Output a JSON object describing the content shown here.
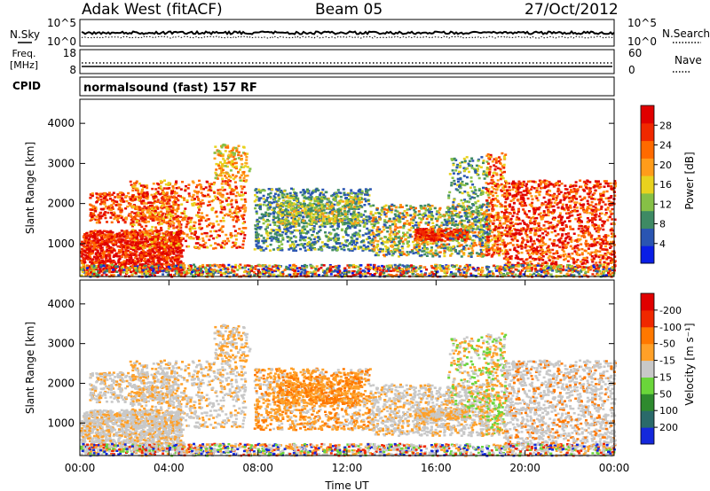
{
  "header": {
    "station": "Adak West (fitACF)",
    "beam": "Beam 05",
    "date": "27/Oct/2012"
  },
  "chart_data": [
    {
      "type": "line",
      "name": "noise-panel",
      "left_label": "N.Sky",
      "left_ticks": [
        "10^5",
        "10^0"
      ],
      "right_label": "N.Search",
      "right_ticks": [
        "10^5",
        "10^0"
      ]
    },
    {
      "type": "line",
      "name": "freq-panel",
      "left_label_lines": [
        "Freq.",
        "[MHz]"
      ],
      "left_ticks": [
        "18",
        "8"
      ],
      "right_label": "Nave",
      "right_ticks": [
        "60",
        "0"
      ]
    },
    {
      "type": "table",
      "name": "cpid-panel",
      "label": "CPID",
      "program": "normalsound (fast) 157 RF"
    },
    {
      "type": "heatmap",
      "name": "power",
      "ylabel": "Slant Range [km]",
      "ylim": [
        180,
        4600
      ],
      "yticks": [
        1000,
        2000,
        3000,
        4000
      ],
      "xlim": [
        0,
        24
      ],
      "colorbar_label": "Power [dB]",
      "colorbar_ticks": [
        "4",
        "8",
        "12",
        "16",
        "20",
        "24",
        "28"
      ],
      "colors": [
        "#0a1ee6",
        "#2a55b2",
        "#3e8a64",
        "#86c046",
        "#e8d21e",
        "#ff9c1a",
        "#ff6a00",
        "#f02800",
        "#e00000"
      ]
    },
    {
      "type": "heatmap",
      "name": "velocity",
      "ylabel": "Slant Range [km]",
      "ylim": [
        180,
        4600
      ],
      "yticks": [
        1000,
        2000,
        3000,
        4000
      ],
      "xlim": [
        0,
        24
      ],
      "xticks": [
        "00:00",
        "04:00",
        "08:00",
        "12:00",
        "16:00",
        "20:00",
        "00:00"
      ],
      "xlabel": "Time UT",
      "colorbar_label": "Velocity [m s⁻¹]",
      "colorbar_ticks": [
        "200",
        "100",
        "50",
        "15",
        "-15",
        "-50",
        "-100",
        "-200"
      ],
      "colors": [
        "#1428dc",
        "#2a6a6a",
        "#2e8a2e",
        "#6ad63a",
        "#c8c8c8",
        "#ffa028",
        "#ff7800",
        "#f02800",
        "#e00000"
      ]
    }
  ]
}
